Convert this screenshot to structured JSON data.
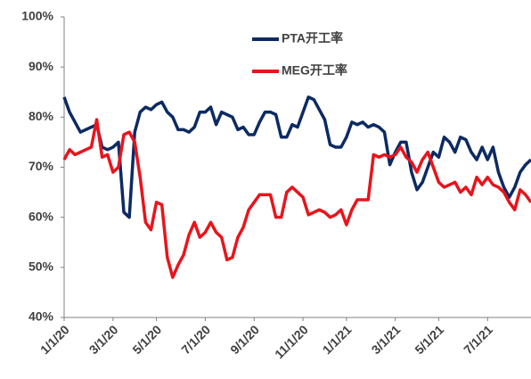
{
  "chart_data": {
    "type": "line",
    "categories": [
      "1/1/20",
      null,
      null,
      null,
      null,
      null,
      null,
      null,
      null,
      "3/1/20",
      null,
      null,
      null,
      null,
      null,
      null,
      null,
      "5/1/20",
      null,
      null,
      null,
      null,
      null,
      null,
      null,
      null,
      "7/1/20",
      null,
      null,
      null,
      null,
      null,
      null,
      null,
      null,
      "9/1/20",
      null,
      null,
      null,
      null,
      null,
      null,
      null,
      null,
      "11/1/20",
      null,
      null,
      null,
      null,
      null,
      null,
      null,
      "1/1/21",
      null,
      null,
      null,
      null,
      null,
      null,
      null,
      null,
      "3/1/21",
      null,
      null,
      null,
      null,
      null,
      null,
      null,
      "5/1/21",
      null,
      null,
      null,
      null,
      null,
      null,
      null,
      null,
      "7/1/21",
      null,
      null,
      null,
      null,
      null,
      null,
      null,
      null
    ],
    "series": [
      {
        "name": "PTA开工率",
        "color": "#0c2a63",
        "values": [
          84,
          81,
          79,
          77,
          77.5,
          78,
          78.5,
          74,
          73.5,
          74,
          75,
          61,
          60,
          77,
          81,
          82,
          81.5,
          82.5,
          83,
          81,
          80,
          77.5,
          77.5,
          77,
          78,
          81,
          81,
          82,
          78.5,
          81,
          80.5,
          80,
          77.5,
          78,
          76.5,
          76.5,
          79,
          81,
          81,
          80.5,
          76,
          76,
          78.5,
          78,
          81,
          84,
          83.5,
          81.5,
          79.5,
          74.5,
          74,
          74,
          76,
          79,
          78.5,
          79,
          78,
          78.5,
          78,
          77,
          70.5,
          73,
          75,
          75,
          69,
          65.5,
          67,
          70,
          73,
          72,
          76,
          75,
          73,
          76,
          75.5,
          73,
          71.5,
          74,
          71.5,
          74,
          69,
          66,
          64,
          66,
          69,
          70.5,
          71.5
        ]
      },
      {
        "name": "MEG开工率",
        "color": "#e8141c",
        "values": [
          71.5,
          73.5,
          72.5,
          73,
          73.5,
          74,
          79.5,
          72,
          72.5,
          69,
          70,
          76.5,
          77,
          75,
          68,
          59,
          57.5,
          63,
          62.5,
          52,
          48,
          50.5,
          52.5,
          56.5,
          59,
          56,
          57,
          59,
          57,
          56,
          51.5,
          52,
          56,
          58,
          61.5,
          63,
          64.5,
          64.5,
          64.5,
          60,
          60,
          65,
          66,
          65,
          64,
          60.5,
          61,
          61.5,
          61,
          60,
          60.5,
          61.5,
          58.5,
          61.5,
          63.5,
          63.5,
          63.5,
          72.5,
          72,
          72.5,
          72,
          72.5,
          74,
          72,
          71,
          69,
          71.5,
          73,
          70,
          67,
          66,
          66.5,
          67,
          65,
          66,
          64.5,
          68,
          66.5,
          68,
          66.5,
          66,
          65,
          63,
          61.5,
          65.5,
          64.5,
          63
        ]
      }
    ],
    "ylim": [
      40,
      100
    ],
    "yticks": [
      {
        "value": 40,
        "label": "40%"
      },
      {
        "value": 50,
        "label": "50%"
      },
      {
        "value": 60,
        "label": "60%"
      },
      {
        "value": 70,
        "label": "70%"
      },
      {
        "value": 80,
        "label": "80%"
      },
      {
        "value": 90,
        "label": "90%"
      },
      {
        "value": 100,
        "label": "100%"
      }
    ],
    "grid": false,
    "legend": "top"
  }
}
